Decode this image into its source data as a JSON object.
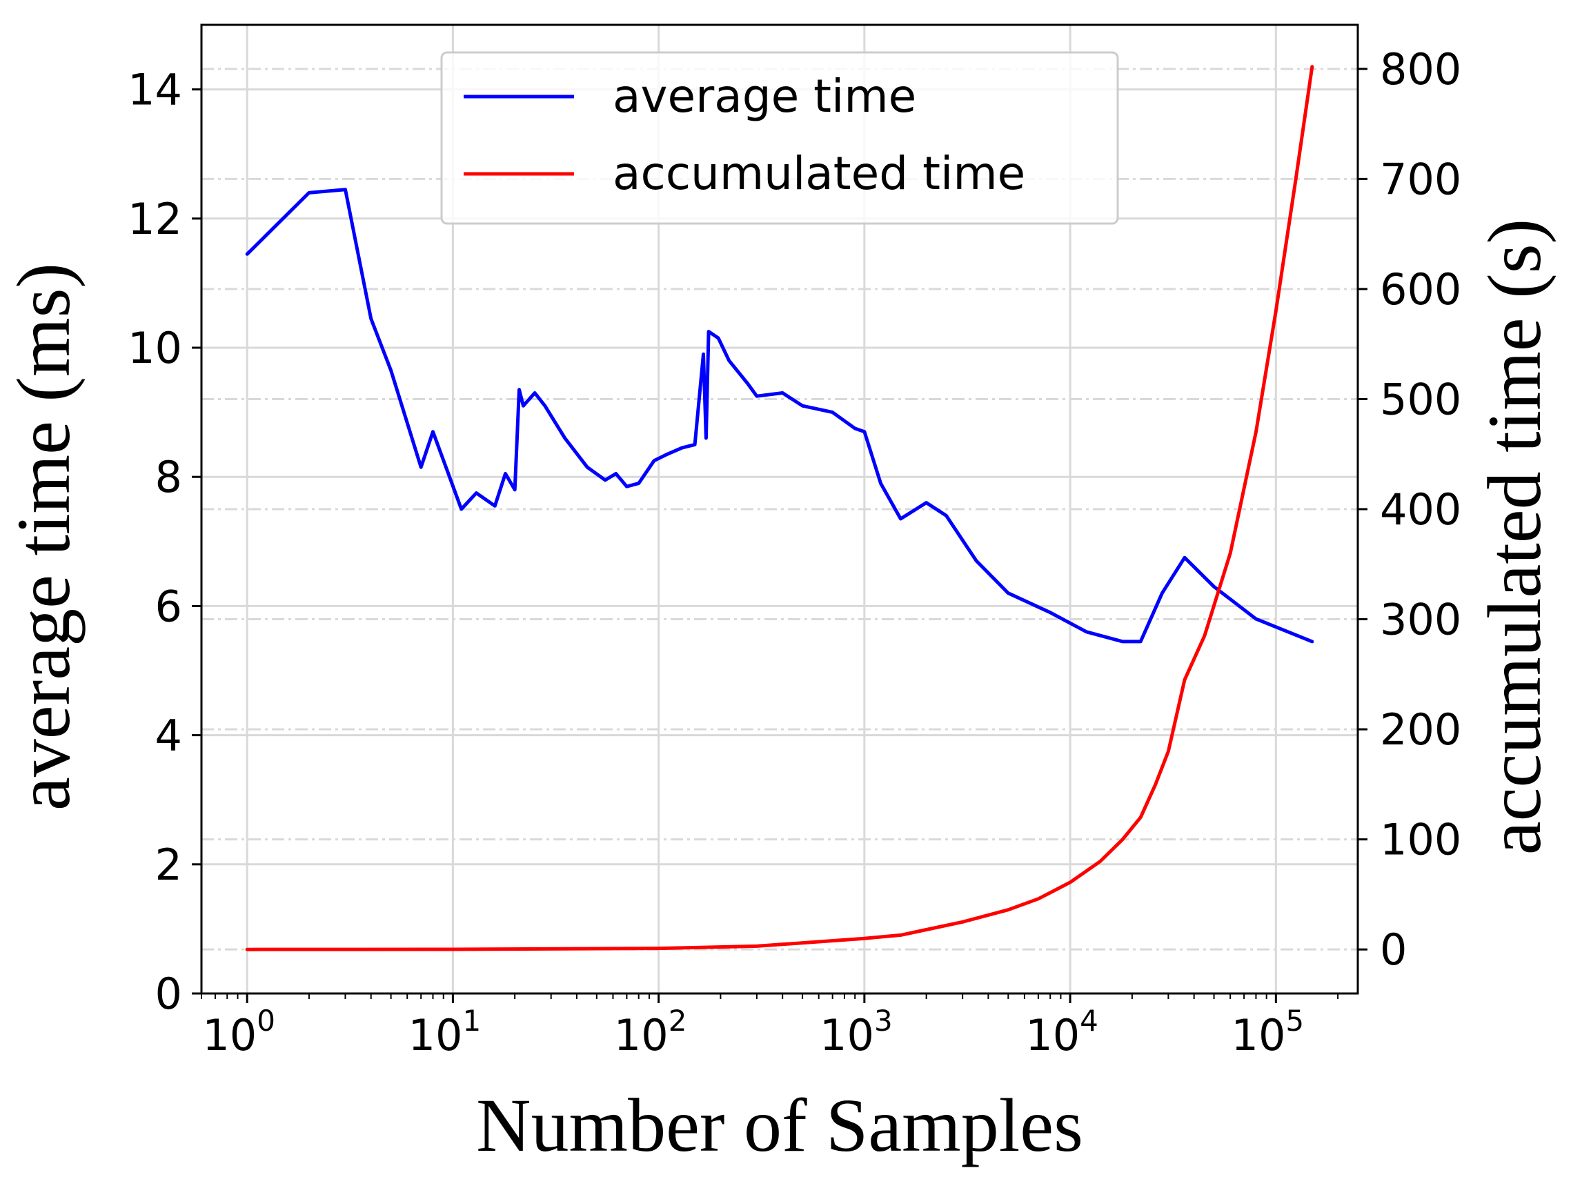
{
  "chart_data": {
    "type": "line",
    "dual_axis": true,
    "xlabel": "Number of Samples",
    "ylabel_left": "average time (ms)",
    "ylabel_right": "accumulated time (s)",
    "xscale": "log",
    "xlim": [
      0.6,
      250000
    ],
    "ylim_left": [
      0,
      15
    ],
    "ylim_right": [
      -40,
      840
    ],
    "x_ticks": [
      {
        "base": "10",
        "exp": "0",
        "value": 1
      },
      {
        "base": "10",
        "exp": "1",
        "value": 10
      },
      {
        "base": "10",
        "exp": "2",
        "value": 100
      },
      {
        "base": "10",
        "exp": "3",
        "value": 1000
      },
      {
        "base": "10",
        "exp": "4",
        "value": 10000
      },
      {
        "base": "10",
        "exp": "5",
        "value": 100000
      }
    ],
    "y_ticks_left": [
      "0",
      "2",
      "4",
      "6",
      "8",
      "10",
      "12",
      "14"
    ],
    "y_ticks_right": [
      "0",
      "100",
      "200",
      "300",
      "400",
      "500",
      "600",
      "700",
      "800"
    ],
    "grid": true,
    "legend_position": "top-center",
    "series": [
      {
        "name": "average time",
        "axis": "left",
        "color": "#0000ff",
        "points": [
          [
            1,
            11.45
          ],
          [
            2,
            12.4
          ],
          [
            3,
            12.45
          ],
          [
            4,
            10.45
          ],
          [
            5,
            9.65
          ],
          [
            7,
            8.15
          ],
          [
            8,
            8.7
          ],
          [
            11,
            7.5
          ],
          [
            13,
            7.75
          ],
          [
            16,
            7.55
          ],
          [
            18,
            8.05
          ],
          [
            20,
            7.8
          ],
          [
            21,
            9.35
          ],
          [
            22,
            9.1
          ],
          [
            25,
            9.3
          ],
          [
            28,
            9.1
          ],
          [
            35,
            8.6
          ],
          [
            45,
            8.15
          ],
          [
            55,
            7.95
          ],
          [
            62,
            8.05
          ],
          [
            70,
            7.85
          ],
          [
            80,
            7.9
          ],
          [
            95,
            8.25
          ],
          [
            110,
            8.35
          ],
          [
            130,
            8.45
          ],
          [
            150,
            8.5
          ],
          [
            165,
            9.9
          ],
          [
            170,
            8.6
          ],
          [
            175,
            10.25
          ],
          [
            195,
            10.15
          ],
          [
            220,
            9.8
          ],
          [
            270,
            9.45
          ],
          [
            300,
            9.25
          ],
          [
            400,
            9.3
          ],
          [
            500,
            9.1
          ],
          [
            700,
            9.0
          ],
          [
            900,
            8.75
          ],
          [
            1000,
            8.7
          ],
          [
            1200,
            7.9
          ],
          [
            1500,
            7.35
          ],
          [
            2000,
            7.6
          ],
          [
            2500,
            7.4
          ],
          [
            3500,
            6.7
          ],
          [
            5000,
            6.2
          ],
          [
            8000,
            5.9
          ],
          [
            12000,
            5.6
          ],
          [
            18000,
            5.45
          ],
          [
            22000,
            5.45
          ],
          [
            28000,
            6.2
          ],
          [
            36000,
            6.75
          ],
          [
            50000,
            6.3
          ],
          [
            80000,
            5.8
          ],
          [
            150000,
            5.45
          ]
        ]
      },
      {
        "name": "accumulated time",
        "axis": "right",
        "color": "#ff0000",
        "points": [
          [
            1,
            0
          ],
          [
            10,
            0.1
          ],
          [
            100,
            1
          ],
          [
            300,
            3
          ],
          [
            1000,
            10
          ],
          [
            1500,
            13
          ],
          [
            2000,
            18
          ],
          [
            3000,
            25
          ],
          [
            5000,
            36
          ],
          [
            7000,
            46
          ],
          [
            10000,
            61
          ],
          [
            14000,
            80
          ],
          [
            18000,
            100
          ],
          [
            22000,
            120
          ],
          [
            26000,
            150
          ],
          [
            30000,
            180
          ],
          [
            36000,
            245
          ],
          [
            45000,
            285
          ],
          [
            60000,
            360
          ],
          [
            80000,
            470
          ],
          [
            100000,
            580
          ],
          [
            125000,
            700
          ],
          [
            150000,
            802
          ]
        ]
      }
    ]
  }
}
